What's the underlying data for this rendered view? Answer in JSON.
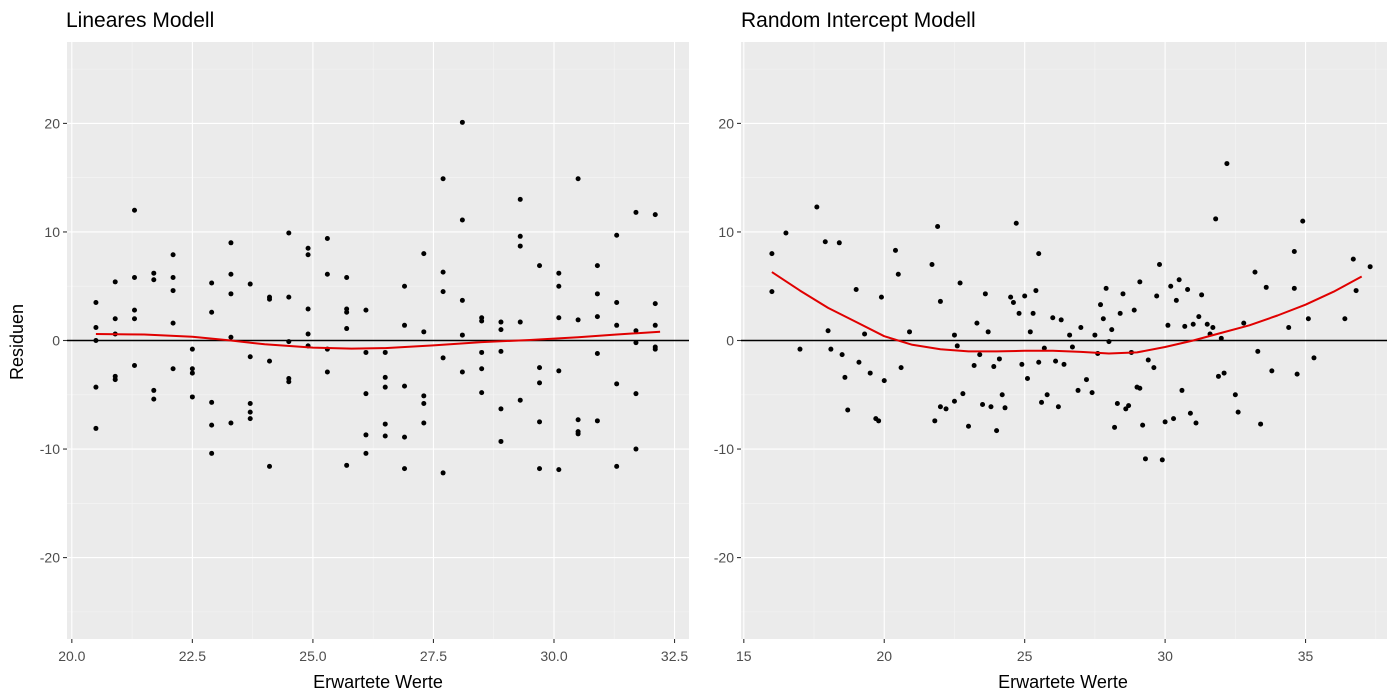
{
  "chart_data": [
    {
      "type": "scatter",
      "title": "Lineares Modell",
      "xlabel": "Erwartete Werte",
      "ylabel": "Residuen",
      "xlim": [
        19.9,
        32.8
      ],
      "ylim": [
        -27.5,
        27.5
      ],
      "xticks": [
        20.0,
        22.5,
        25.0,
        27.5,
        30.0,
        32.5
      ],
      "xtick_labels": [
        "20.0",
        "22.5",
        "25.0",
        "27.5",
        "30.0",
        "32.5"
      ],
      "yticks": [
        -20,
        -10,
        0,
        10,
        20
      ],
      "ytick_labels": [
        "-20",
        "-10",
        "0",
        "10",
        "20"
      ],
      "grid": true,
      "hline": 0,
      "point_color": "#000000",
      "smooth_color": "#e00000",
      "points": [
        [
          20.5,
          3.5
        ],
        [
          20.5,
          1.2
        ],
        [
          20.5,
          0.0
        ],
        [
          20.5,
          -4.3
        ],
        [
          20.5,
          -8.1
        ],
        [
          20.9,
          5.4
        ],
        [
          20.9,
          2.0
        ],
        [
          20.9,
          0.6
        ],
        [
          20.9,
          -3.3
        ],
        [
          20.9,
          -3.6
        ],
        [
          21.3,
          12.0
        ],
        [
          21.3,
          5.8
        ],
        [
          21.3,
          2.8
        ],
        [
          21.3,
          2.0
        ],
        [
          21.3,
          -2.3
        ],
        [
          21.7,
          6.2
        ],
        [
          21.7,
          5.6
        ],
        [
          21.7,
          -4.6
        ],
        [
          21.7,
          -5.4
        ],
        [
          22.1,
          7.9
        ],
        [
          22.1,
          5.8
        ],
        [
          22.1,
          4.6
        ],
        [
          22.1,
          1.6
        ],
        [
          22.1,
          -2.6
        ],
        [
          22.5,
          -0.8
        ],
        [
          22.5,
          -2.6
        ],
        [
          22.5,
          -3.0
        ],
        [
          22.5,
          -5.2
        ],
        [
          22.9,
          5.3
        ],
        [
          22.9,
          2.6
        ],
        [
          22.9,
          -5.7
        ],
        [
          22.9,
          -7.8
        ],
        [
          22.9,
          -10.4
        ],
        [
          23.3,
          9.0
        ],
        [
          23.3,
          6.1
        ],
        [
          23.3,
          4.3
        ],
        [
          23.3,
          0.3
        ],
        [
          23.3,
          -7.6
        ],
        [
          23.7,
          5.2
        ],
        [
          23.7,
          -1.5
        ],
        [
          23.7,
          -5.8
        ],
        [
          23.7,
          -6.6
        ],
        [
          23.7,
          -7.2
        ],
        [
          24.1,
          4.0
        ],
        [
          24.1,
          3.8
        ],
        [
          24.1,
          -1.9
        ],
        [
          24.1,
          -11.6
        ],
        [
          24.5,
          9.9
        ],
        [
          24.5,
          4.0
        ],
        [
          24.5,
          -0.1
        ],
        [
          24.5,
          -3.5
        ],
        [
          24.5,
          -3.8
        ],
        [
          24.9,
          8.5
        ],
        [
          24.9,
          7.9
        ],
        [
          24.9,
          2.9
        ],
        [
          24.9,
          0.6
        ],
        [
          24.9,
          -0.5
        ],
        [
          25.3,
          9.4
        ],
        [
          25.3,
          6.1
        ],
        [
          25.3,
          -0.8
        ],
        [
          25.3,
          -2.9
        ],
        [
          25.7,
          5.8
        ],
        [
          25.7,
          2.9
        ],
        [
          25.7,
          2.6
        ],
        [
          25.7,
          1.1
        ],
        [
          25.7,
          -11.5
        ],
        [
          26.1,
          2.8
        ],
        [
          26.1,
          -1.1
        ],
        [
          26.1,
          -4.9
        ],
        [
          26.1,
          -8.7
        ],
        [
          26.1,
          -10.4
        ],
        [
          26.5,
          -1.1
        ],
        [
          26.5,
          -3.4
        ],
        [
          26.5,
          -4.3
        ],
        [
          26.5,
          -7.7
        ],
        [
          26.5,
          -8.8
        ],
        [
          26.9,
          5.0
        ],
        [
          26.9,
          1.4
        ],
        [
          26.9,
          -4.2
        ],
        [
          26.9,
          -8.9
        ],
        [
          26.9,
          -11.8
        ],
        [
          27.3,
          8.0
        ],
        [
          27.3,
          0.8
        ],
        [
          27.3,
          -5.1
        ],
        [
          27.3,
          -5.8
        ],
        [
          27.3,
          -7.6
        ],
        [
          27.7,
          14.9
        ],
        [
          27.7,
          6.3
        ],
        [
          27.7,
          4.5
        ],
        [
          27.7,
          -1.6
        ],
        [
          27.7,
          -12.2
        ],
        [
          28.1,
          20.1
        ],
        [
          28.1,
          11.1
        ],
        [
          28.1,
          3.7
        ],
        [
          28.1,
          0.5
        ],
        [
          28.1,
          -2.9
        ],
        [
          28.5,
          2.1
        ],
        [
          28.5,
          1.8
        ],
        [
          28.5,
          -1.1
        ],
        [
          28.5,
          -2.6
        ],
        [
          28.5,
          -4.8
        ],
        [
          28.9,
          1.7
        ],
        [
          28.9,
          1.0
        ],
        [
          28.9,
          -1.0
        ],
        [
          28.9,
          -6.3
        ],
        [
          28.9,
          -9.3
        ],
        [
          29.3,
          13.0
        ],
        [
          29.3,
          9.6
        ],
        [
          29.3,
          8.7
        ],
        [
          29.3,
          1.7
        ],
        [
          29.3,
          -5.5
        ],
        [
          29.7,
          6.9
        ],
        [
          29.7,
          -2.5
        ],
        [
          29.7,
          -3.9
        ],
        [
          29.7,
          -7.5
        ],
        [
          29.7,
          -11.8
        ],
        [
          30.1,
          6.2
        ],
        [
          30.1,
          5.0
        ],
        [
          30.1,
          2.1
        ],
        [
          30.1,
          -2.8
        ],
        [
          30.1,
          -11.9
        ],
        [
          30.5,
          14.9
        ],
        [
          30.5,
          1.9
        ],
        [
          30.5,
          -7.3
        ],
        [
          30.5,
          -8.4
        ],
        [
          30.5,
          -8.6
        ],
        [
          30.9,
          6.9
        ],
        [
          30.9,
          4.3
        ],
        [
          30.9,
          2.2
        ],
        [
          30.9,
          -1.2
        ],
        [
          30.9,
          -7.4
        ],
        [
          31.3,
          9.7
        ],
        [
          31.3,
          3.5
        ],
        [
          31.3,
          1.4
        ],
        [
          31.3,
          -4.0
        ],
        [
          31.3,
          -11.6
        ],
        [
          31.7,
          11.8
        ],
        [
          31.7,
          0.9
        ],
        [
          31.7,
          -0.2
        ],
        [
          31.7,
          -4.9
        ],
        [
          31.7,
          -10.0
        ],
        [
          32.1,
          11.6
        ],
        [
          32.1,
          3.4
        ],
        [
          32.1,
          1.4
        ],
        [
          32.1,
          -0.6
        ],
        [
          32.1,
          -0.8
        ]
      ],
      "smooth_line": [
        [
          20.5,
          0.6
        ],
        [
          21.5,
          0.55
        ],
        [
          22.5,
          0.35
        ],
        [
          23.3,
          0.0
        ],
        [
          24.0,
          -0.35
        ],
        [
          25.0,
          -0.65
        ],
        [
          25.8,
          -0.75
        ],
        [
          26.5,
          -0.7
        ],
        [
          27.5,
          -0.45
        ],
        [
          28.5,
          -0.15
        ],
        [
          29.5,
          0.05
        ],
        [
          30.5,
          0.3
        ],
        [
          31.3,
          0.55
        ],
        [
          32.2,
          0.8
        ]
      ]
    },
    {
      "type": "scatter",
      "title": "Random Intercept Modell",
      "xlabel": "Erwartete Werte",
      "ylabel": "",
      "xlim": [
        14.9,
        37.9
      ],
      "ylim": [
        -27.5,
        27.5
      ],
      "xticks": [
        15,
        20,
        25,
        30,
        35
      ],
      "xtick_labels": [
        "15",
        "20",
        "25",
        "30",
        "35"
      ],
      "yticks": [
        -20,
        -10,
        0,
        10,
        20
      ],
      "ytick_labels": [
        "-20",
        "-10",
        "0",
        "10",
        "20"
      ],
      "grid": true,
      "hline": 0,
      "point_color": "#000000",
      "smooth_color": "#e00000",
      "points": [
        [
          16.0,
          8.0
        ],
        [
          16.0,
          4.5
        ],
        [
          16.5,
          9.9
        ],
        [
          17.0,
          -0.8
        ],
        [
          17.6,
          12.3
        ],
        [
          17.9,
          9.1
        ],
        [
          18.0,
          0.9
        ],
        [
          18.1,
          -0.8
        ],
        [
          18.4,
          9.0
        ],
        [
          18.5,
          -1.3
        ],
        [
          18.6,
          -3.4
        ],
        [
          18.7,
          -6.4
        ],
        [
          19.0,
          4.7
        ],
        [
          19.1,
          -2.0
        ],
        [
          19.3,
          0.6
        ],
        [
          19.5,
          -3.0
        ],
        [
          19.7,
          -7.2
        ],
        [
          19.8,
          -7.4
        ],
        [
          19.9,
          4.0
        ],
        [
          20.0,
          -3.7
        ],
        [
          20.4,
          8.3
        ],
        [
          20.5,
          6.1
        ],
        [
          20.6,
          -2.5
        ],
        [
          20.9,
          0.8
        ],
        [
          21.7,
          7.0
        ],
        [
          21.9,
          10.5
        ],
        [
          22.0,
          3.6
        ],
        [
          21.8,
          -7.4
        ],
        [
          22.0,
          -6.1
        ],
        [
          22.2,
          -6.3
        ],
        [
          22.5,
          -5.6
        ],
        [
          22.5,
          0.5
        ],
        [
          22.6,
          -0.5
        ],
        [
          22.7,
          5.3
        ],
        [
          22.8,
          -4.9
        ],
        [
          23.0,
          -7.9
        ],
        [
          23.2,
          -2.3
        ],
        [
          23.3,
          1.6
        ],
        [
          23.4,
          -1.3
        ],
        [
          23.5,
          -5.9
        ],
        [
          23.6,
          4.3
        ],
        [
          23.7,
          0.8
        ],
        [
          23.8,
          -6.1
        ],
        [
          23.9,
          -2.4
        ],
        [
          24.0,
          -8.3
        ],
        [
          24.1,
          -1.7
        ],
        [
          24.2,
          -5.0
        ],
        [
          24.3,
          -6.2
        ],
        [
          24.5,
          4.0
        ],
        [
          24.6,
          3.5
        ],
        [
          24.7,
          10.8
        ],
        [
          24.8,
          2.5
        ],
        [
          24.9,
          -2.2
        ],
        [
          25.0,
          4.1
        ],
        [
          25.1,
          -3.5
        ],
        [
          25.2,
          0.8
        ],
        [
          25.3,
          2.5
        ],
        [
          25.4,
          4.6
        ],
        [
          25.5,
          8.0
        ],
        [
          25.5,
          -2.0
        ],
        [
          25.6,
          -5.7
        ],
        [
          25.7,
          -0.7
        ],
        [
          25.8,
          -5.0
        ],
        [
          26.0,
          2.1
        ],
        [
          26.1,
          -1.9
        ],
        [
          26.2,
          -6.1
        ],
        [
          26.3,
          1.9
        ],
        [
          26.4,
          -2.2
        ],
        [
          26.6,
          0.5
        ],
        [
          26.7,
          -0.6
        ],
        [
          26.9,
          -4.6
        ],
        [
          27.0,
          1.2
        ],
        [
          27.2,
          -3.6
        ],
        [
          27.4,
          -4.8
        ],
        [
          27.5,
          0.5
        ],
        [
          27.6,
          -1.2
        ],
        [
          27.7,
          3.3
        ],
        [
          27.8,
          2.0
        ],
        [
          27.9,
          4.8
        ],
        [
          28.0,
          -0.1
        ],
        [
          28.1,
          1.0
        ],
        [
          28.2,
          -8.0
        ],
        [
          28.3,
          -5.8
        ],
        [
          28.4,
          2.5
        ],
        [
          28.5,
          4.3
        ],
        [
          28.6,
          -6.3
        ],
        [
          28.7,
          -6.0
        ],
        [
          28.8,
          -1.1
        ],
        [
          28.9,
          2.8
        ],
        [
          29.0,
          -4.3
        ],
        [
          29.1,
          5.4
        ],
        [
          29.1,
          -4.4
        ],
        [
          29.2,
          -7.8
        ],
        [
          29.3,
          -10.9
        ],
        [
          29.4,
          -1.8
        ],
        [
          29.6,
          -2.5
        ],
        [
          29.7,
          4.1
        ],
        [
          29.8,
          7.0
        ],
        [
          29.9,
          -11.0
        ],
        [
          30.0,
          -7.5
        ],
        [
          30.1,
          1.4
        ],
        [
          30.2,
          5.0
        ],
        [
          30.3,
          -7.2
        ],
        [
          30.4,
          3.7
        ],
        [
          30.5,
          5.6
        ],
        [
          30.6,
          -4.6
        ],
        [
          30.7,
          1.3
        ],
        [
          30.8,
          4.7
        ],
        [
          30.9,
          -6.7
        ],
        [
          31.0,
          1.5
        ],
        [
          31.1,
          -7.6
        ],
        [
          31.2,
          2.2
        ],
        [
          31.3,
          4.2
        ],
        [
          31.5,
          1.5
        ],
        [
          31.6,
          0.6
        ],
        [
          31.7,
          1.2
        ],
        [
          31.8,
          11.2
        ],
        [
          31.9,
          -3.3
        ],
        [
          32.0,
          0.2
        ],
        [
          32.1,
          -3.0
        ],
        [
          32.2,
          16.3
        ],
        [
          32.5,
          -5.0
        ],
        [
          32.6,
          -6.6
        ],
        [
          32.8,
          1.6
        ],
        [
          33.2,
          6.3
        ],
        [
          33.3,
          -1.0
        ],
        [
          33.4,
          -7.7
        ],
        [
          33.6,
          4.9
        ],
        [
          33.8,
          -2.8
        ],
        [
          34.4,
          1.2
        ],
        [
          34.6,
          8.2
        ],
        [
          34.6,
          4.8
        ],
        [
          34.7,
          -3.1
        ],
        [
          34.9,
          11.0
        ],
        [
          35.1,
          2.0
        ],
        [
          35.3,
          -1.6
        ],
        [
          36.4,
          2.0
        ],
        [
          36.7,
          7.5
        ],
        [
          36.8,
          4.6
        ],
        [
          37.3,
          6.8
        ]
      ],
      "smooth_line": [
        [
          16.0,
          6.3
        ],
        [
          17.0,
          4.6
        ],
        [
          18.0,
          3.0
        ],
        [
          19.0,
          1.7
        ],
        [
          20.0,
          0.4
        ],
        [
          21.0,
          -0.4
        ],
        [
          22.0,
          -0.8
        ],
        [
          23.0,
          -1.0
        ],
        [
          24.0,
          -1.0
        ],
        [
          25.0,
          -0.95
        ],
        [
          26.0,
          -0.95
        ],
        [
          27.0,
          -1.05
        ],
        [
          28.0,
          -1.2
        ],
        [
          29.0,
          -1.1
        ],
        [
          30.0,
          -0.6
        ],
        [
          31.0,
          0.0
        ],
        [
          32.0,
          0.7
        ],
        [
          33.0,
          1.4
        ],
        [
          34.0,
          2.3
        ],
        [
          35.0,
          3.3
        ],
        [
          36.0,
          4.5
        ],
        [
          37.0,
          5.9
        ]
      ]
    }
  ]
}
